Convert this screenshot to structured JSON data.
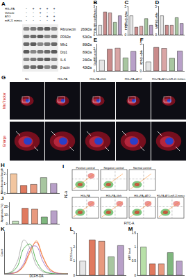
{
  "panel_a": {
    "letter": "A",
    "conditions": [
      {
        "label": "HG+PA",
        "signs": [
          "-",
          "+",
          "+",
          "+",
          "+"
        ]
      },
      {
        "label": "Vehicle",
        "signs": [
          "-",
          "-",
          "+",
          "-",
          "-"
        ]
      },
      {
        "label": "ATO",
        "signs": [
          "-",
          "-",
          "-",
          "+",
          "+"
        ]
      },
      {
        "label": "miR-21 mimics",
        "signs": [
          "-",
          "-",
          "-",
          "-",
          "+"
        ]
      }
    ],
    "bands": [
      {
        "name": "Fibronectin",
        "size": "260kDa"
      },
      {
        "name": "PPARα",
        "size": "52kDa"
      },
      {
        "name": "Mfn1",
        "size": "86kDa"
      },
      {
        "name": "Drp1",
        "size": "80kDa"
      },
      {
        "name": "IL-6",
        "size": "24kDa"
      },
      {
        "name": "β-actin",
        "size": "42kDa"
      }
    ]
  },
  "chart_data": [
    {
      "type": "bar",
      "title": "B",
      "ylabel": "Fibronectin/β-actin",
      "categories": [
        null,
        null,
        null,
        null,
        null
      ],
      "values": [
        1.0,
        2.4,
        2.3,
        1.3,
        2.0
      ],
      "colors": [
        "#e6e6e6",
        "#c98b8b",
        "#d9a5a5",
        "#a8c6a0",
        "#b8a0c8"
      ],
      "ylim": [
        0,
        3
      ],
      "yticks": [
        0,
        1,
        2,
        3
      ],
      "tick_labels": "y"
    },
    {
      "type": "bar",
      "title": "C",
      "ylabel": "PPARα/β-actin",
      "categories": [
        null,
        null,
        null,
        null,
        null
      ],
      "values": [
        1.0,
        0.4,
        0.45,
        0.85,
        0.5
      ],
      "colors": [
        "#e6e6e6",
        "#c98b8b",
        "#d9a5a5",
        "#a8c6a0",
        "#b8a0c8"
      ],
      "ylim": [
        0,
        1.5
      ],
      "yticks": [
        0,
        0.5,
        1,
        1.5
      ],
      "tick_labels": "y"
    },
    {
      "type": "bar",
      "title": "D",
      "ylabel": "Mfn1/β-actin",
      "categories": [
        null,
        null,
        null,
        null,
        null
      ],
      "values": [
        1.0,
        0.5,
        0.5,
        0.9,
        0.6
      ],
      "colors": [
        "#e6e6e6",
        "#c98b8b",
        "#d9a5a5",
        "#a8c6a0",
        "#b8a0c8"
      ],
      "ylim": [
        0,
        1.5
      ],
      "yticks": [
        0,
        0.5,
        1,
        1.5
      ],
      "tick_labels": "y"
    },
    {
      "type": "bar",
      "title": "E",
      "ylabel": "Drp1/β-actin",
      "categories": [
        null,
        null,
        null,
        null,
        null
      ],
      "values": [
        1.0,
        2.0,
        2.1,
        1.2,
        1.8
      ],
      "colors": [
        "#e6e6e6",
        "#c98b8b",
        "#d9a5a5",
        "#a8c6a0",
        "#b8a0c8"
      ],
      "ylim": [
        0,
        2.5
      ],
      "yticks": [
        0,
        1,
        2
      ],
      "tick_labels": "y"
    },
    {
      "type": "bar",
      "title": "F",
      "ylabel": "IL-6/β-actin",
      "categories": [
        null,
        null,
        null,
        null,
        null
      ],
      "values": [
        1.0,
        2.6,
        2.5,
        1.4,
        2.2
      ],
      "colors": [
        "#e6e6e6",
        "#c98b8b",
        "#d9a5a5",
        "#a8c6a0",
        "#b8a0c8"
      ],
      "ylim": [
        0,
        3
      ],
      "yticks": [
        0,
        1,
        2,
        3
      ],
      "tick_labels": "y"
    },
    {
      "type": "bar",
      "title": "H",
      "ylabel": "Mitochondrial length",
      "categories": [
        null,
        null,
        null,
        null,
        null
      ],
      "values": [
        2.0,
        0.8,
        0.9,
        1.6,
        1.0
      ],
      "colors": [
        "#f2c6a0",
        "#e07a5f",
        "#e89a7f",
        "#a8c6a0",
        "#b8a0c8"
      ],
      "ylim": [
        0,
        2.5
      ],
      "yticks": [
        0,
        1,
        2
      ],
      "tick_labels": "y"
    },
    {
      "type": "bar",
      "title": "J",
      "ylabel": "Apoptosis (%)",
      "categories": [
        null,
        null,
        null,
        null,
        null
      ],
      "values": [
        3,
        18,
        17,
        8,
        15
      ],
      "colors": [
        "#c8e6c0",
        "#e07a5f",
        "#e89a7f",
        "#7fb77e",
        "#b8a0c8"
      ],
      "ylim": [
        0,
        25
      ],
      "yticks": [
        0,
        10,
        20
      ],
      "tick_labels": "y"
    },
    {
      "type": "line",
      "title": "K",
      "xlabel": "DCFH-DA",
      "ylabel": "Count",
      "x": [
        0,
        1,
        2,
        3,
        4,
        5,
        6,
        7,
        8,
        9,
        10
      ],
      "series": [
        {
          "color": "#9a9a9a",
          "values": [
            0,
            5,
            30,
            80,
            60,
            20,
            5,
            1,
            0,
            0,
            0
          ]
        },
        {
          "color": "#d62728",
          "values": [
            0,
            1,
            5,
            20,
            55,
            75,
            40,
            12,
            3,
            0,
            0
          ]
        },
        {
          "color": "#ff9f40",
          "values": [
            0,
            1,
            4,
            18,
            50,
            78,
            42,
            14,
            3,
            1,
            0
          ]
        },
        {
          "color": "#2ca02c",
          "values": [
            0,
            3,
            18,
            60,
            70,
            30,
            8,
            2,
            0,
            0,
            0
          ]
        },
        {
          "color": "#9467bd",
          "values": [
            0,
            1,
            6,
            25,
            62,
            65,
            30,
            8,
            2,
            0,
            0
          ]
        }
      ],
      "xlim": [
        0,
        10
      ],
      "ylim": [
        0,
        100
      ],
      "tick_labels": false
    },
    {
      "type": "bar",
      "title": "L",
      "ylabel": "ROS level",
      "categories": [
        null,
        null,
        null,
        null,
        null
      ],
      "values": [
        1.0,
        2.5,
        2.4,
        1.3,
        2.1
      ],
      "colors": [
        "#e6e6e6",
        "#e07a5f",
        "#e89a7f",
        "#a8c6a0",
        "#b8a0c8"
      ],
      "ylim": [
        0,
        3
      ],
      "yticks": [
        0,
        1,
        2,
        3
      ],
      "tick_labels": "y"
    },
    {
      "type": "bar",
      "title": "M",
      "ylabel": "ATP level",
      "categories": [
        null,
        null,
        null,
        null,
        null
      ],
      "values": [
        1.0,
        0.4,
        0.4,
        0.8,
        0.5
      ],
      "colors": [
        "#b8e0a8",
        "#e07a5f",
        "#e89a7f",
        "#7fb77e",
        "#b8a0c8"
      ],
      "ylim": [
        0,
        1.5
      ],
      "yticks": [
        0,
        0.5,
        1,
        1.5
      ],
      "tick_labels": "y"
    }
  ],
  "panel_g": {
    "letter": "G",
    "columns": [
      "NC",
      "HG+PA",
      "HG+PA+Veh",
      "HG+PA+ATO",
      "HG+PA+ATO+miR-21 mimics"
    ],
    "rows": [
      "MitoTracker",
      "Enlarge"
    ]
  },
  "panel_i": {
    "letter": "I",
    "xlabel": "FITC-A",
    "ylabel": "PE-A",
    "plots": [
      "Positive control",
      "Negative control",
      "Normal control",
      "HG+PA",
      "HG+PA+Veh",
      "HG+PA+ATO",
      "HG+PA+ATO+miR-21 mimics"
    ]
  }
}
